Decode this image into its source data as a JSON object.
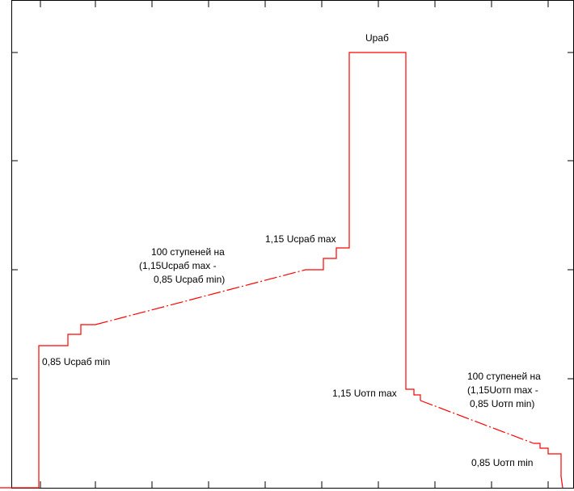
{
  "colors": {
    "background": "#ffffff",
    "frame": "#000000",
    "signal": "#ff0000"
  },
  "labels": {
    "u_work": "Uраб",
    "u_work_min": "0,85 Uсраб min",
    "u_work_max": "1,15 Uсраб max",
    "steps_up_line1": "100 ступеней на",
    "steps_up_line2": "(1,15Uсраб max -",
    "steps_up_line3": "0,85 Uсраб min)",
    "u_release_max": "1,15 Uотп max",
    "u_release_min": "0,85 Uотп min",
    "steps_down_line1": "100 ступеней на",
    "steps_down_line2": "(1,15Uотп max  -",
    "steps_down_line3": "0,85 Uотп min)"
  }
}
